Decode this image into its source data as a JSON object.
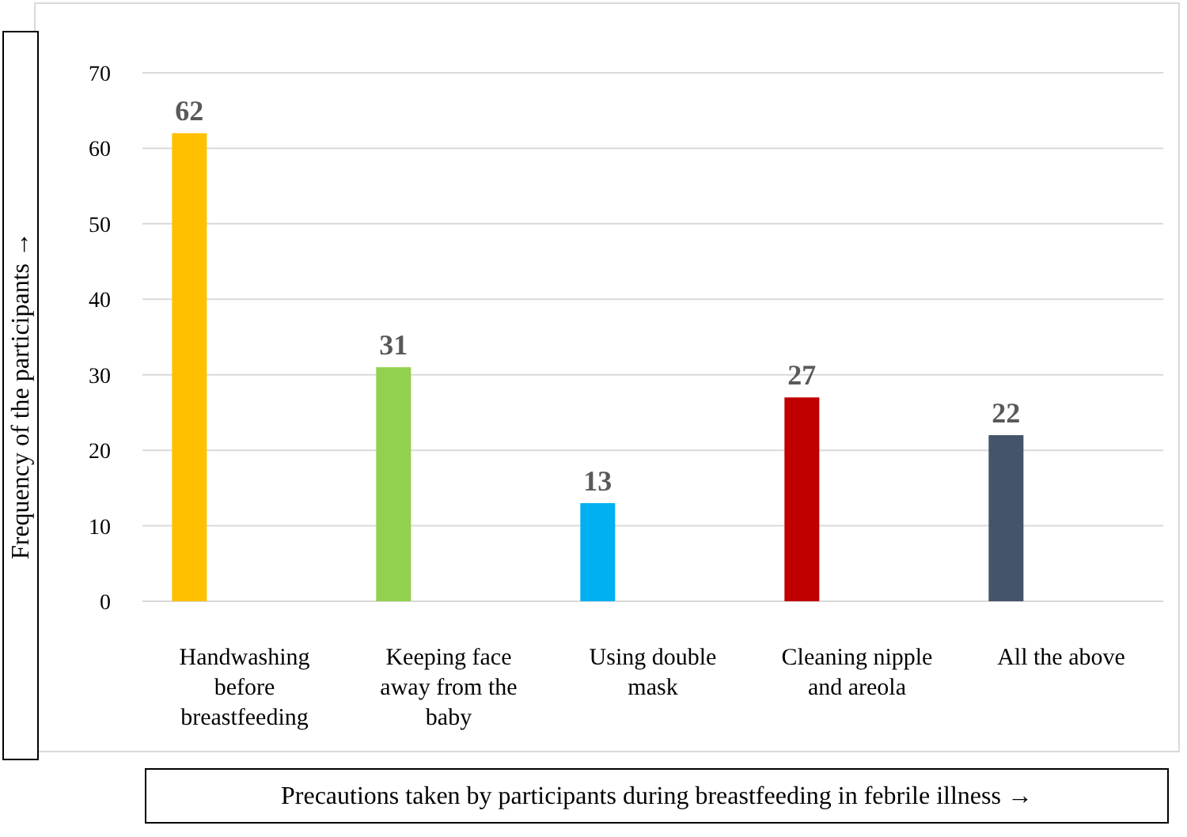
{
  "chart_data": {
    "type": "bar",
    "categories": [
      "Handwashing before breastfeeding",
      "Keeping face away from the baby",
      "Using double mask",
      "Cleaning nipple and areola",
      "All the above"
    ],
    "values": [
      62,
      31,
      13,
      27,
      22
    ],
    "colors": [
      "#ffc000",
      "#92d050",
      "#00b0f0",
      "#c00000",
      "#44546a"
    ],
    "ylim": [
      0,
      70
    ],
    "yticks": [
      0,
      10,
      20,
      30,
      40,
      50,
      60,
      70
    ],
    "grid": "y",
    "data_labels": true,
    "xlabel": "Precautions taken by participants during breastfeeding in febrile illness →",
    "ylabel": "Frequency of the participants →"
  }
}
